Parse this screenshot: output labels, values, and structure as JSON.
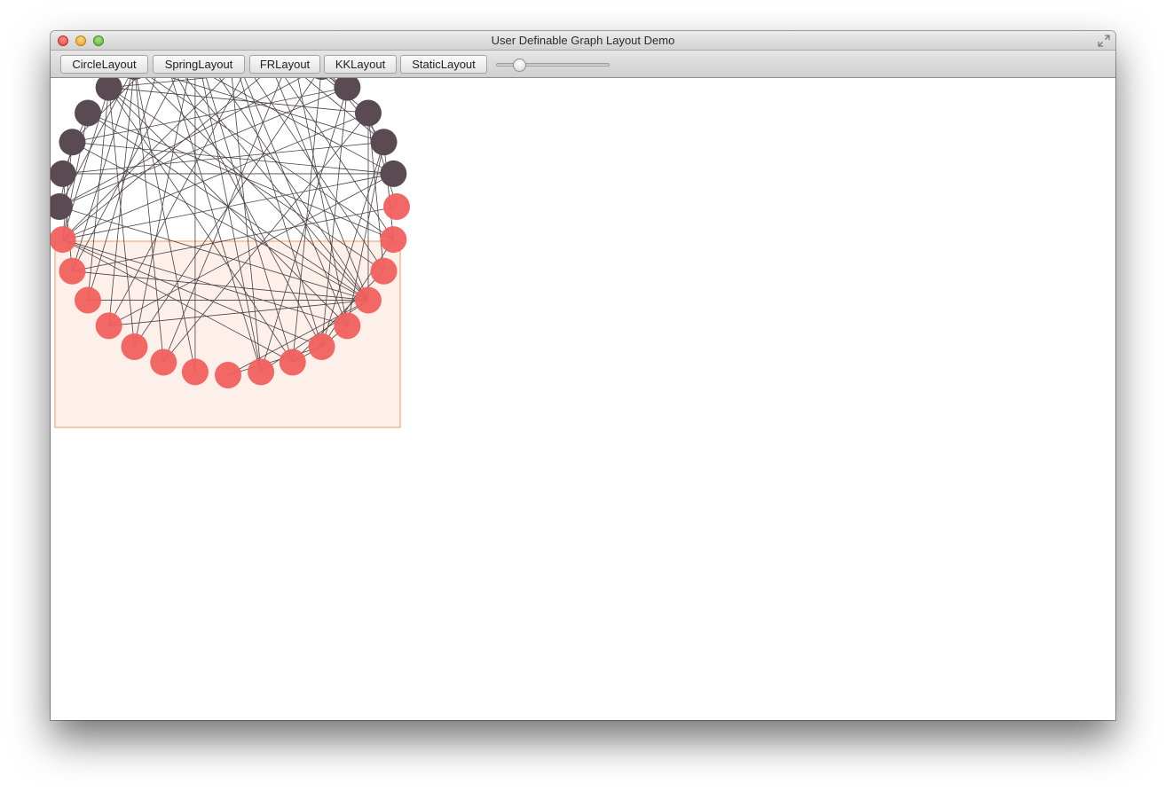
{
  "window": {
    "title": "User Definable Graph Layout Demo"
  },
  "toolbar": {
    "buttons": [
      {
        "label": "CircleLayout"
      },
      {
        "label": "SpringLayout"
      },
      {
        "label": "FRLayout"
      },
      {
        "label": "KKLayout"
      },
      {
        "label": "StaticLayout"
      }
    ],
    "slider": {
      "value": 0.17
    }
  },
  "graph": {
    "node_color": "#5a4a52",
    "selected_node_color": "#f0605e",
    "edge_color": "#4a4045",
    "selection_fill": "#fdf0ea",
    "selection_border": "#ef9b63",
    "node_count": 32,
    "selected_nodes": [
      9,
      10,
      11,
      12,
      13,
      14,
      15,
      16,
      17,
      18,
      19,
      20,
      21,
      22,
      23,
      24
    ],
    "edges": [
      [
        0,
        17
      ],
      [
        0,
        22
      ],
      [
        0,
        3
      ],
      [
        0,
        19
      ],
      [
        0,
        1
      ],
      [
        0,
        20
      ],
      [
        1,
        21
      ],
      [
        1,
        17
      ],
      [
        1,
        2
      ],
      [
        1,
        18
      ],
      [
        2,
        25
      ],
      [
        2,
        19
      ],
      [
        2,
        6
      ],
      [
        2,
        21
      ],
      [
        2,
        17
      ],
      [
        2,
        3
      ],
      [
        3,
        26
      ],
      [
        3,
        12
      ],
      [
        3,
        21
      ],
      [
        3,
        10
      ],
      [
        3,
        8
      ],
      [
        3,
        23
      ],
      [
        4,
        22
      ],
      [
        4,
        20
      ],
      [
        4,
        9
      ],
      [
        4,
        27
      ],
      [
        4,
        18
      ],
      [
        4,
        29
      ],
      [
        5,
        9
      ],
      [
        5,
        21
      ],
      [
        5,
        23
      ],
      [
        5,
        7
      ],
      [
        6,
        9
      ],
      [
        6,
        28
      ],
      [
        6,
        25
      ],
      [
        6,
        21
      ],
      [
        6,
        8
      ],
      [
        7,
        26
      ],
      [
        7,
        25
      ],
      [
        8,
        29
      ],
      [
        8,
        21
      ],
      [
        8,
        28
      ],
      [
        9,
        19
      ],
      [
        9,
        20
      ],
      [
        9,
        18
      ],
      [
        9,
        25
      ],
      [
        9,
        27
      ],
      [
        9,
        30
      ],
      [
        9,
        31
      ],
      [
        10,
        21
      ],
      [
        10,
        24
      ],
      [
        10,
        1
      ],
      [
        10,
        7
      ],
      [
        11,
        21
      ],
      [
        11,
        2
      ],
      [
        11,
        4
      ],
      [
        12,
        21
      ],
      [
        12,
        25
      ],
      [
        12,
        31
      ],
      [
        13,
        1
      ],
      [
        13,
        29
      ],
      [
        13,
        4
      ],
      [
        14,
        3
      ],
      [
        14,
        27
      ],
      [
        14,
        30
      ],
      [
        15,
        3
      ],
      [
        15,
        1
      ],
      [
        16,
        19
      ],
      [
        16,
        21
      ],
      [
        17,
        28
      ],
      [
        17,
        21
      ],
      [
        18,
        19
      ],
      [
        18,
        22
      ],
      [
        18,
        29
      ],
      [
        19,
        20
      ],
      [
        19,
        23
      ],
      [
        19,
        26
      ],
      [
        19,
        28
      ],
      [
        20,
        26
      ],
      [
        20,
        30
      ],
      [
        21,
        27
      ],
      [
        21,
        31
      ],
      [
        22,
        27
      ],
      [
        23,
        26
      ],
      [
        23,
        31
      ],
      [
        24,
        27
      ],
      [
        26,
        29
      ],
      [
        26,
        31
      ],
      [
        27,
        30
      ],
      [
        28,
        30
      ],
      [
        28,
        31
      ],
      [
        29,
        31
      ],
      [
        30,
        31
      ]
    ]
  }
}
